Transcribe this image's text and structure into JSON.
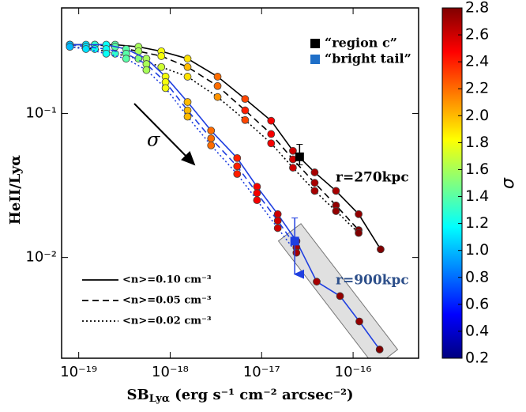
{
  "chart_data": {
    "type": "line",
    "xlabel": {
      "main": "SB",
      "sub": "Lyα",
      "rest": " (erg s⁻¹ cm⁻² arcsec⁻²)"
    },
    "ylabel": "HeII/Lyα",
    "xscale": "log",
    "yscale": "log",
    "xlim": [
      6.5e-20,
      5.2e-16
    ],
    "ylim": [
      0.002,
      0.54
    ],
    "xticks": [
      {
        "value": 1e-19,
        "label": "10⁻¹⁹"
      },
      {
        "value": 1e-18,
        "label": "10⁻¹⁸"
      },
      {
        "value": 1e-17,
        "label": "10⁻¹⁷"
      },
      {
        "value": 1e-16,
        "label": "10⁻¹⁶"
      }
    ],
    "yticks": [
      {
        "value": 0.1,
        "label": "10⁻¹"
      },
      {
        "value": 0.01,
        "label": "10⁻²"
      }
    ],
    "colorbar": {
      "label": "σ",
      "colormap": "jet",
      "clim": [
        0.2,
        2.8
      ],
      "ticks": [
        0.2,
        0.4,
        0.6,
        0.8,
        {
          "value": 1,
          "label": "1.0"
        },
        1.2,
        1.4,
        1.6,
        1.8,
        {
          "value": 2,
          "label": "2.0"
        },
        2.2,
        2.4,
        2.6,
        2.8
      ]
    },
    "annotation": "σ",
    "models": [
      {
        "label": "r=270kpc",
        "color": "#000000",
        "label_color": "#000000",
        "series": [
          {
            "name": "<n>=0.10 cm⁻³",
            "linestyle": "solid",
            "x": [
              8e-20,
              1.5e-19,
              2.5e-19,
              4.5e-19,
              8e-19,
              1.55e-18,
              3.3e-18,
              6.6e-18,
              1.27e-17,
              2.2e-17,
              3.8e-17,
              6.5e-17,
              1.15e-16,
              2e-16
            ],
            "y": [
              0.3,
              0.3,
              0.3,
              0.29,
              0.27,
              0.24,
              0.18,
              0.126,
              0.089,
              0.055,
              0.039,
              0.029,
              0.02,
              0.0114
            ],
            "sigma": [
              1.2,
              1.3,
              1.4,
              1.6,
              1.8,
              1.9,
              2.2,
              2.3,
              2.5,
              2.6,
              2.7,
              2.7,
              2.75,
              2.8
            ]
          },
          {
            "name": "<n>=0.05 cm⁻³",
            "linestyle": "dashed",
            "x": [
              8e-20,
              1.5e-19,
              2.5e-19,
              4.5e-19,
              8e-19,
              1.55e-18,
              3.3e-18,
              6.6e-18,
              1.27e-17,
              2.2e-17,
              3.8e-17,
              6.5e-17,
              1.15e-16
            ],
            "y": [
              0.3,
              0.3,
              0.29,
              0.27,
              0.25,
              0.21,
              0.155,
              0.105,
              0.072,
              0.048,
              0.033,
              0.023,
              0.0155
            ],
            "sigma": [
              1.2,
              1.3,
              1.4,
              1.6,
              1.8,
              2.0,
              2.2,
              2.4,
              2.5,
              2.6,
              2.7,
              2.75,
              2.8
            ]
          },
          {
            "name": "<n>=0.02 cm⁻³",
            "linestyle": "dotted",
            "x": [
              8e-20,
              1.5e-19,
              2.5e-19,
              4.5e-19,
              8e-19,
              1.55e-18,
              3.3e-18,
              6.6e-18,
              1.27e-17,
              2.2e-17,
              3.8e-17,
              6.5e-17,
              1.15e-16
            ],
            "y": [
              0.29,
              0.28,
              0.26,
              0.24,
              0.21,
              0.18,
              0.13,
              0.09,
              0.062,
              0.042,
              0.029,
              0.021,
              0.0148
            ],
            "sigma": [
              1.1,
              1.2,
              1.3,
              1.5,
              1.7,
              1.9,
              2.1,
              2.3,
              2.5,
              2.6,
              2.7,
              2.75,
              2.8
            ]
          }
        ]
      },
      {
        "label": "r=900kpc",
        "color": "#1f3fe0",
        "label_color": "#2d4f8a",
        "series": [
          {
            "linestyle": "solid",
            "x": [
              8e-20,
              1.2e-19,
              2e-19,
              3.3e-19,
              5.5e-19,
              8.9e-19,
              1.55e-18,
              2.8e-18,
              5.4e-18,
              8.9e-18,
              1.5e-17,
              2.4e-17
            ],
            "y": [
              0.3,
              0.3,
              0.3,
              0.28,
              0.24,
              0.18,
              0.12,
              0.076,
              0.049,
              0.031,
              0.02,
              0.013
            ],
            "sigma": [
              1.0,
              1.1,
              1.2,
              1.4,
              1.6,
              1.8,
              2.0,
              2.2,
              2.4,
              2.5,
              2.6,
              2.7
            ]
          },
          {
            "linestyle": "dashed",
            "x": [
              8e-20,
              1.2e-19,
              2e-19,
              3.3e-19,
              5.5e-19,
              8.9e-19,
              1.55e-18,
              2.8e-18,
              5.4e-18,
              8.9e-18,
              1.5e-17,
              2.4e-17
            ],
            "y": [
              0.3,
              0.29,
              0.28,
              0.26,
              0.22,
              0.165,
              0.105,
              0.067,
              0.043,
              0.028,
              0.018,
              0.0118
            ],
            "sigma": [
              1.0,
              1.1,
              1.2,
              1.4,
              1.6,
              1.8,
              2.0,
              2.2,
              2.4,
              2.5,
              2.6,
              2.7
            ]
          },
          {
            "linestyle": "dotted",
            "x": [
              8e-20,
              1.2e-19,
              2e-19,
              3.3e-19,
              5.5e-19,
              8.9e-19,
              1.55e-18,
              2.8e-18,
              5.4e-18,
              8.9e-18,
              1.5e-17,
              2.4e-17
            ],
            "y": [
              0.29,
              0.28,
              0.26,
              0.24,
              0.2,
              0.15,
              0.095,
              0.06,
              0.038,
              0.025,
              0.016,
              0.0108
            ],
            "sigma": [
              1.0,
              1.1,
              1.2,
              1.4,
              1.6,
              1.8,
              2.0,
              2.2,
              2.4,
              2.5,
              2.6,
              2.7
            ]
          }
        ],
        "extrapolation": {
          "x": [
            2.4e-17,
            4e-17,
            7.2e-17,
            1.17e-16,
            1.95e-16
          ],
          "y": [
            0.013,
            0.0068,
            0.0054,
            0.0036,
            0.0023
          ],
          "sigma": [
            2.7,
            2.7,
            2.75,
            2.75,
            2.8
          ]
        }
      }
    ],
    "observations": [
      {
        "name": "“region c”",
        "color": "#000000",
        "x": 2.6e-17,
        "y": 0.05,
        "yerr_lower": 0.044,
        "yerr_upper": 0.061
      },
      {
        "name": "“bright tail”",
        "color": "#1f3fe0",
        "legend_color": "#1f6fc8",
        "x": 2.3e-17,
        "y": 0.013,
        "yerr_lower": 0.0071,
        "yerr_upper": 0.0188,
        "lower_is_limit": true
      }
    ]
  }
}
